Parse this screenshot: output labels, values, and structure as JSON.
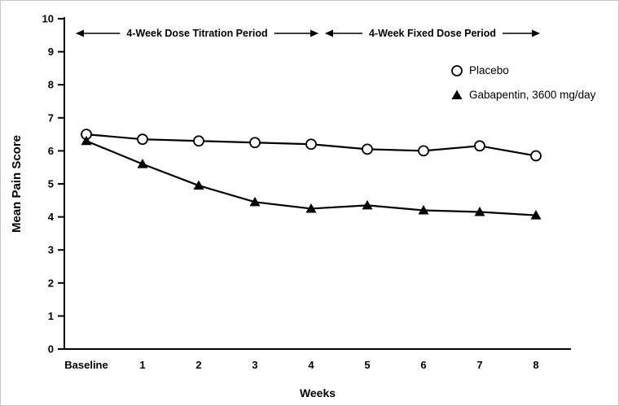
{
  "chart_data": {
    "type": "line",
    "title": "",
    "xlabel": "Weeks",
    "ylabel": "Mean Pain Score",
    "ylim": [
      0,
      10
    ],
    "yticks": [
      0,
      1,
      2,
      3,
      4,
      5,
      6,
      7,
      8,
      9,
      10
    ],
    "categories": [
      "Baseline",
      "1",
      "2",
      "3",
      "4",
      "5",
      "6",
      "7",
      "8"
    ],
    "series": [
      {
        "name": "Placebo",
        "marker": "open-circle",
        "color": "#000000",
        "values": [
          6.5,
          6.35,
          6.3,
          6.25,
          6.2,
          6.05,
          6.0,
          6.15,
          5.85
        ]
      },
      {
        "name": "Gabapentin, 3600 mg/day",
        "marker": "filled-triangle",
        "color": "#000000",
        "values": [
          6.3,
          5.6,
          4.95,
          4.45,
          4.25,
          4.35,
          4.2,
          4.15,
          4.05
        ]
      }
    ],
    "annotations": [
      {
        "label": "4-Week Dose Titration Period",
        "start_index": 0,
        "end_index": 4
      },
      {
        "label": "4-Week Fixed Dose Period",
        "start_index": 4,
        "end_index": 8
      }
    ],
    "legend_position": "upper-right",
    "grid": "off",
    "colors": {
      "line": "#000000",
      "background": "#ffffff"
    }
  }
}
